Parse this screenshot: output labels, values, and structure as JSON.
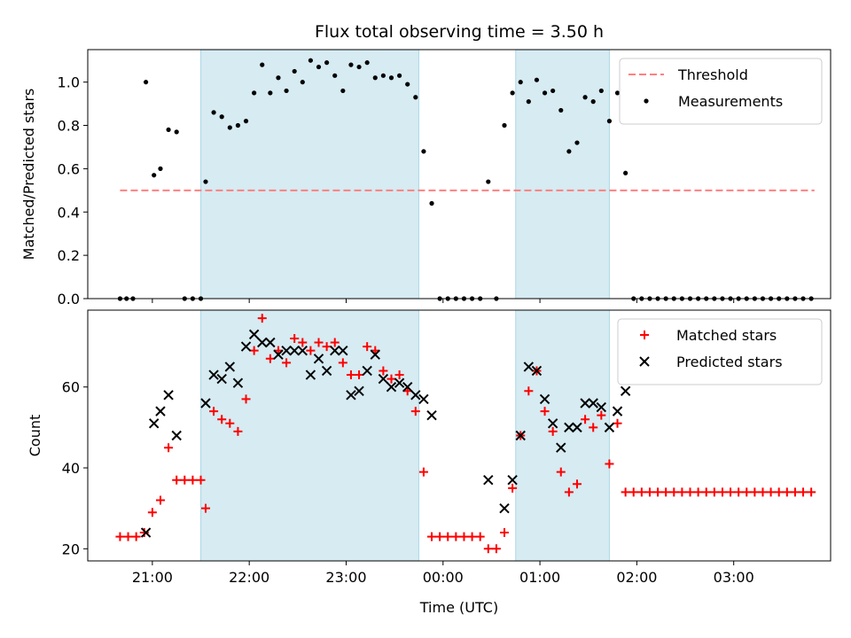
{
  "chart_data": [
    {
      "type": "scatter",
      "title": "Flux total observing time = 3.50 h",
      "xlabel": "",
      "ylabel": "Matched/Predicted stars",
      "xticks": [
        "21:00",
        "22:00",
        "23:00",
        "00:00",
        "01:00",
        "02:00",
        "03:00"
      ],
      "show_xtick_labels": false,
      "yticks": [
        "0.0",
        "0.2",
        "0.4",
        "0.6",
        "0.8",
        "1.0"
      ],
      "ylim": [
        0,
        1.15
      ],
      "xlim": [
        "20:20",
        "04:00"
      ],
      "grid": false,
      "legend_position": "top-right",
      "shaded_regions": [
        [
          "21:30",
          "23:45"
        ],
        [
          "00:45",
          "01:43"
        ]
      ],
      "shade_color": "#add8e6",
      "threshold": {
        "name": "Threshold",
        "value": 0.5,
        "x_from": "20:40",
        "x_to": "03:50",
        "color": "#ff8080",
        "style": "dashed"
      },
      "series": [
        {
          "name": "Measurements",
          "marker": "dot",
          "color": "#000000",
          "points": [
            [
              "20:40",
              0
            ],
            [
              "20:44",
              0
            ],
            [
              "20:48",
              0
            ],
            [
              "20:56",
              1.0
            ],
            [
              "21:01",
              0.57
            ],
            [
              "21:05",
              0.6
            ],
            [
              "21:10",
              0.78
            ],
            [
              "21:15",
              0.77
            ],
            [
              "21:20",
              0
            ],
            [
              "21:25",
              0
            ],
            [
              "21:30",
              0
            ],
            [
              "21:33",
              0.54
            ],
            [
              "21:38",
              0.86
            ],
            [
              "21:43",
              0.84
            ],
            [
              "21:48",
              0.79
            ],
            [
              "21:53",
              0.8
            ],
            [
              "21:58",
              0.82
            ],
            [
              "22:03",
              0.95
            ],
            [
              "22:08",
              1.08
            ],
            [
              "22:13",
              0.95
            ],
            [
              "22:18",
              1.02
            ],
            [
              "22:23",
              0.96
            ],
            [
              "22:28",
              1.05
            ],
            [
              "22:33",
              1.0
            ],
            [
              "22:38",
              1.1
            ],
            [
              "22:43",
              1.07
            ],
            [
              "22:48",
              1.09
            ],
            [
              "22:53",
              1.03
            ],
            [
              "22:58",
              0.96
            ],
            [
              "23:03",
              1.08
            ],
            [
              "23:08",
              1.07
            ],
            [
              "23:13",
              1.09
            ],
            [
              "23:18",
              1.02
            ],
            [
              "23:23",
              1.03
            ],
            [
              "23:28",
              1.02
            ],
            [
              "23:33",
              1.03
            ],
            [
              "23:38",
              0.99
            ],
            [
              "23:43",
              0.93
            ],
            [
              "23:48",
              0.68
            ],
            [
              "23:53",
              0.44
            ],
            [
              "23:58",
              0
            ],
            [
              "00:03",
              0
            ],
            [
              "00:08",
              0
            ],
            [
              "00:13",
              0
            ],
            [
              "00:18",
              0
            ],
            [
              "00:23",
              0
            ],
            [
              "00:28",
              0.54
            ],
            [
              "00:33",
              0
            ],
            [
              "00:38",
              0.8
            ],
            [
              "00:43",
              0.95
            ],
            [
              "00:48",
              1.0
            ],
            [
              "00:53",
              0.91
            ],
            [
              "00:58",
              1.01
            ],
            [
              "01:03",
              0.95
            ],
            [
              "01:08",
              0.96
            ],
            [
              "01:13",
              0.87
            ],
            [
              "01:18",
              0.68
            ],
            [
              "01:23",
              0.72
            ],
            [
              "01:28",
              0.93
            ],
            [
              "01:33",
              0.91
            ],
            [
              "01:38",
              0.96
            ],
            [
              "01:43",
              0.82
            ],
            [
              "01:48",
              0.95
            ],
            [
              "01:53",
              0.58
            ],
            [
              "01:58",
              0
            ],
            [
              "02:03",
              0
            ],
            [
              "02:08",
              0
            ],
            [
              "02:13",
              0
            ],
            [
              "02:18",
              0
            ],
            [
              "02:23",
              0
            ],
            [
              "02:28",
              0
            ],
            [
              "02:33",
              0
            ],
            [
              "02:38",
              0
            ],
            [
              "02:43",
              0
            ],
            [
              "02:48",
              0
            ],
            [
              "02:53",
              0
            ],
            [
              "02:58",
              0
            ],
            [
              "03:03",
              0
            ],
            [
              "03:08",
              0
            ],
            [
              "03:13",
              0
            ],
            [
              "03:18",
              0
            ],
            [
              "03:23",
              0
            ],
            [
              "03:28",
              0
            ],
            [
              "03:33",
              0
            ],
            [
              "03:38",
              0
            ],
            [
              "03:43",
              0
            ],
            [
              "03:48",
              0
            ]
          ]
        }
      ]
    },
    {
      "type": "scatter",
      "title": "",
      "xlabel": "Time (UTC)",
      "ylabel": "Count",
      "xticks": [
        "21:00",
        "22:00",
        "23:00",
        "00:00",
        "01:00",
        "02:00",
        "03:00"
      ],
      "show_xtick_labels": true,
      "yticks": [
        "20",
        "40",
        "60"
      ],
      "ylim": [
        17,
        79
      ],
      "xlim": [
        "20:20",
        "04:00"
      ],
      "grid": false,
      "legend_position": "top-right",
      "shaded_regions": [
        [
          "21:30",
          "23:45"
        ],
        [
          "00:45",
          "01:43"
        ]
      ],
      "shade_color": "#add8e6",
      "series": [
        {
          "name": "Matched stars",
          "marker": "plus",
          "color": "#ff0000",
          "points": [
            [
              "20:40",
              23
            ],
            [
              "20:45",
              23
            ],
            [
              "20:50",
              23
            ],
            [
              "20:55",
              24
            ],
            [
              "21:00",
              29
            ],
            [
              "21:05",
              32
            ],
            [
              "21:10",
              45
            ],
            [
              "21:15",
              37
            ],
            [
              "21:20",
              37
            ],
            [
              "21:25",
              37
            ],
            [
              "21:30",
              37
            ],
            [
              "21:33",
              30
            ],
            [
              "21:38",
              54
            ],
            [
              "21:43",
              52
            ],
            [
              "21:48",
              51
            ],
            [
              "21:53",
              49
            ],
            [
              "21:58",
              57
            ],
            [
              "22:03",
              69
            ],
            [
              "22:08",
              77
            ],
            [
              "22:13",
              67
            ],
            [
              "22:18",
              69
            ],
            [
              "22:23",
              66
            ],
            [
              "22:28",
              72
            ],
            [
              "22:33",
              71
            ],
            [
              "22:38",
              69
            ],
            [
              "22:43",
              71
            ],
            [
              "22:48",
              70
            ],
            [
              "22:53",
              71
            ],
            [
              "22:58",
              66
            ],
            [
              "23:03",
              63
            ],
            [
              "23:08",
              63
            ],
            [
              "23:13",
              70
            ],
            [
              "23:18",
              69
            ],
            [
              "23:23",
              64
            ],
            [
              "23:28",
              62
            ],
            [
              "23:33",
              63
            ],
            [
              "23:38",
              59
            ],
            [
              "23:43",
              54
            ],
            [
              "23:48",
              39
            ],
            [
              "23:53",
              23
            ],
            [
              "23:58",
              23
            ],
            [
              "00:03",
              23
            ],
            [
              "00:08",
              23
            ],
            [
              "00:13",
              23
            ],
            [
              "00:18",
              23
            ],
            [
              "00:23",
              23
            ],
            [
              "00:28",
              20
            ],
            [
              "00:33",
              20
            ],
            [
              "00:38",
              24
            ],
            [
              "00:43",
              35
            ],
            [
              "00:48",
              48
            ],
            [
              "00:53",
              59
            ],
            [
              "00:58",
              64
            ],
            [
              "01:03",
              54
            ],
            [
              "01:08",
              49
            ],
            [
              "01:13",
              39
            ],
            [
              "01:18",
              34
            ],
            [
              "01:23",
              36
            ],
            [
              "01:28",
              52
            ],
            [
              "01:33",
              50
            ],
            [
              "01:38",
              53
            ],
            [
              "01:43",
              41
            ],
            [
              "01:48",
              51
            ],
            [
              "01:53",
              34
            ],
            [
              "01:58",
              34
            ],
            [
              "02:03",
              34
            ],
            [
              "02:08",
              34
            ],
            [
              "02:13",
              34
            ],
            [
              "02:18",
              34
            ],
            [
              "02:23",
              34
            ],
            [
              "02:28",
              34
            ],
            [
              "02:33",
              34
            ],
            [
              "02:38",
              34
            ],
            [
              "02:43",
              34
            ],
            [
              "02:48",
              34
            ],
            [
              "02:53",
              34
            ],
            [
              "02:58",
              34
            ],
            [
              "03:03",
              34
            ],
            [
              "03:08",
              34
            ],
            [
              "03:13",
              34
            ],
            [
              "03:18",
              34
            ],
            [
              "03:23",
              34
            ],
            [
              "03:28",
              34
            ],
            [
              "03:33",
              34
            ],
            [
              "03:38",
              34
            ],
            [
              "03:43",
              34
            ],
            [
              "03:48",
              34
            ]
          ]
        },
        {
          "name": "Predicted stars",
          "marker": "x",
          "color": "#000000",
          "points": [
            [
              "20:56",
              24
            ],
            [
              "21:01",
              51
            ],
            [
              "21:05",
              54
            ],
            [
              "21:10",
              58
            ],
            [
              "21:15",
              48
            ],
            [
              "21:33",
              56
            ],
            [
              "21:38",
              63
            ],
            [
              "21:43",
              62
            ],
            [
              "21:48",
              65
            ],
            [
              "21:53",
              61
            ],
            [
              "21:58",
              70
            ],
            [
              "22:03",
              73
            ],
            [
              "22:08",
              71
            ],
            [
              "22:13",
              71
            ],
            [
              "22:18",
              68
            ],
            [
              "22:23",
              69
            ],
            [
              "22:28",
              69
            ],
            [
              "22:33",
              69
            ],
            [
              "22:38",
              63
            ],
            [
              "22:43",
              67
            ],
            [
              "22:48",
              64
            ],
            [
              "22:53",
              69
            ],
            [
              "22:58",
              69
            ],
            [
              "23:03",
              58
            ],
            [
              "23:08",
              59
            ],
            [
              "23:13",
              64
            ],
            [
              "23:18",
              68
            ],
            [
              "23:23",
              62
            ],
            [
              "23:28",
              60
            ],
            [
              "23:33",
              61
            ],
            [
              "23:38",
              60
            ],
            [
              "23:43",
              58
            ],
            [
              "23:48",
              57
            ],
            [
              "23:53",
              53
            ],
            [
              "00:28",
              37
            ],
            [
              "00:38",
              30
            ],
            [
              "00:43",
              37
            ],
            [
              "00:48",
              48
            ],
            [
              "00:53",
              65
            ],
            [
              "00:58",
              64
            ],
            [
              "01:03",
              57
            ],
            [
              "01:08",
              51
            ],
            [
              "01:13",
              45
            ],
            [
              "01:18",
              50
            ],
            [
              "01:23",
              50
            ],
            [
              "01:28",
              56
            ],
            [
              "01:33",
              56
            ],
            [
              "01:38",
              55
            ],
            [
              "01:43",
              50
            ],
            [
              "01:48",
              54
            ],
            [
              "01:53",
              59
            ]
          ]
        }
      ]
    }
  ]
}
